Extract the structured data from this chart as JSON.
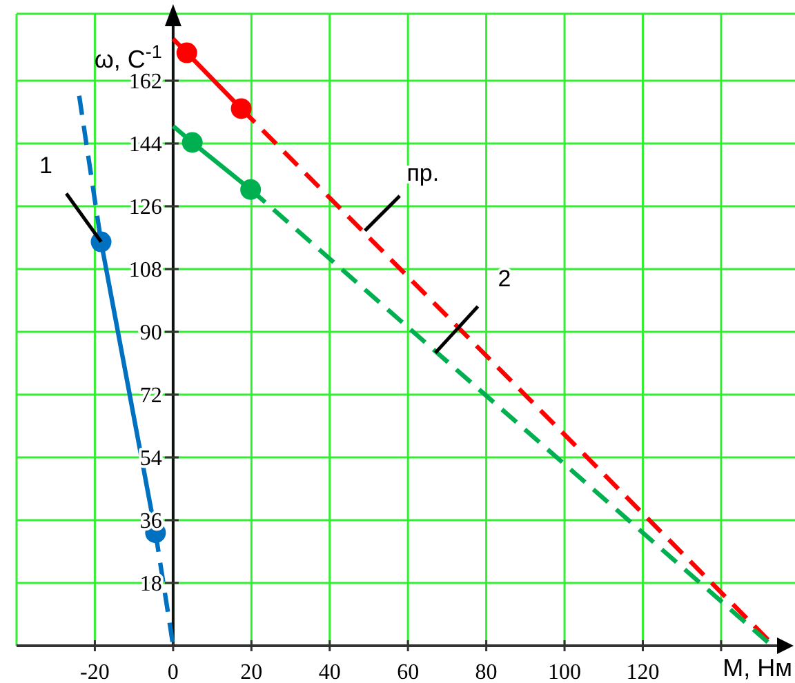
{
  "chart_data": {
    "type": "line",
    "xlabel": "М, Нм",
    "ylabel": "ω, С$^{-1}$",
    "xlim": [
      -40,
      155
    ],
    "ylim": [
      0,
      180
    ],
    "xticks": [
      -20,
      0,
      20,
      40,
      60,
      80,
      100,
      120,
      {
        "value": 140,
        "label": null
      }
    ],
    "yticks": [
      18,
      36,
      54,
      72,
      90,
      108,
      126,
      144,
      162
    ],
    "grid": true,
    "series": [
      {
        "color": "#ff0000",
        "line_style": "solid",
        "x": [
          0,
          3.5,
          17.4
        ],
        "values": [
          174,
          170,
          154
        ]
      },
      {
        "color": "#ff0000",
        "line_style": "dashed",
        "x": [
          17.4,
          153.5
        ],
        "values": [
          154,
          0
        ]
      },
      {
        "type": "scatter",
        "color": "#ff0000",
        "marker": "circle",
        "x": [
          3.5,
          17.4
        ],
        "values": [
          170,
          154
        ]
      },
      {
        "color": "#00b050",
        "line_style": "solid",
        "x": [
          0,
          4.9,
          19.8
        ],
        "values": [
          149,
          144.3,
          130.8
        ]
      },
      {
        "color": "#00b050",
        "line_style": "dashed",
        "x": [
          19.8,
          153
        ],
        "values": [
          130.8,
          0
        ]
      },
      {
        "type": "scatter",
        "color": "#00b050",
        "marker": "circle",
        "x": [
          4.9,
          19.8
        ],
        "values": [
          144.3,
          130.8
        ]
      },
      {
        "color": "#0070c0",
        "line_style": "solid",
        "x": [
          -18.4,
          -4.5
        ],
        "values": [
          115.8,
          32.4
        ]
      },
      {
        "color": "#0070c0",
        "line_style": "dashed",
        "x": [
          -24,
          -18.4
        ],
        "values": [
          157.7,
          115.8
        ]
      },
      {
        "color": "#0070c0",
        "line_style": "dashed",
        "x": [
          -4.5,
          0
        ],
        "values": [
          32.4,
          0
        ]
      },
      {
        "type": "scatter",
        "color": "#0070c0",
        "marker": "circle",
        "x": [
          -18.4,
          -4.5
        ],
        "values": [
          115.8,
          32.4
        ]
      }
    ],
    "annotations": [
      {
        "text": "1",
        "x": -18.4,
        "y": 115.8
      },
      {
        "text": "пр.",
        "x": 49,
        "y": 119
      },
      {
        "text": "2",
        "x": 67,
        "y": 84
      }
    ]
  }
}
